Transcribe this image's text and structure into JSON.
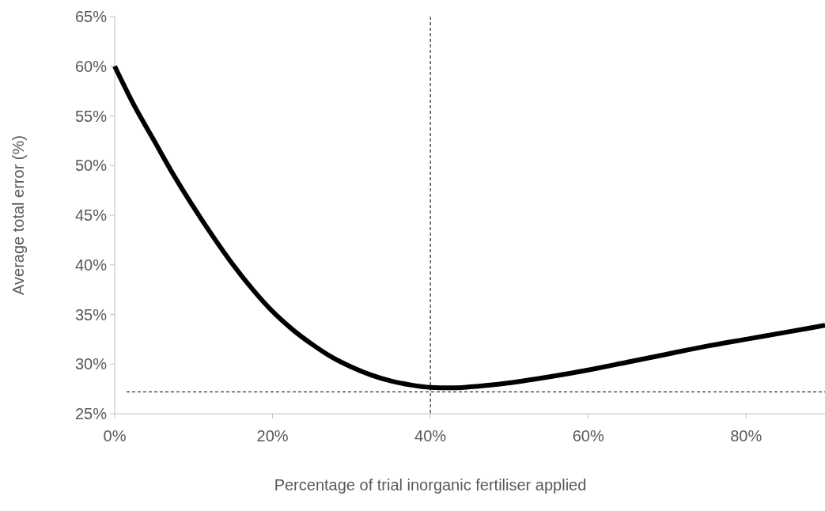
{
  "chart_data": {
    "type": "line",
    "xlabel": "Percentage of trial inorganic fertiliser applied",
    "ylabel": "Average total error (%)",
    "xlim": [
      0,
      90
    ],
    "xticks": [
      {
        "value": 0,
        "label": "0%"
      },
      {
        "value": 20,
        "label": "20%"
      },
      {
        "value": 40,
        "label": "40%"
      },
      {
        "value": 60,
        "label": "60%"
      },
      {
        "value": 80,
        "label": "80%"
      }
    ],
    "ylim": [
      25,
      65
    ],
    "yticks": [
      {
        "value": 25,
        "label": "25%"
      },
      {
        "value": 30,
        "label": "30%"
      },
      {
        "value": 35,
        "label": "35%"
      },
      {
        "value": 40,
        "label": "40%"
      },
      {
        "value": 45,
        "label": "45%"
      },
      {
        "value": 50,
        "label": "50%"
      },
      {
        "value": 55,
        "label": "55%"
      },
      {
        "value": 60,
        "label": "60%"
      },
      {
        "value": 65,
        "label": "65%"
      }
    ],
    "grid": false,
    "marker": "none",
    "line_style": "solid",
    "series": [
      {
        "color": "#000000",
        "x": [
          0,
          2.5,
          5,
          7.5,
          10,
          12.5,
          15,
          17.5,
          20,
          22.5,
          25,
          27.5,
          30,
          32.5,
          35,
          37.5,
          40,
          42.5,
          45,
          50,
          55,
          60,
          65,
          70,
          75,
          80,
          85,
          90
        ],
        "values": [
          60,
          56,
          52.5,
          49,
          45.8,
          42.8,
          40,
          37.5,
          35.3,
          33.5,
          32,
          30.7,
          29.7,
          28.9,
          28.3,
          27.9,
          27.65,
          27.6,
          27.7,
          28.1,
          28.7,
          29.4,
          30.2,
          31,
          31.8,
          32.5,
          33.2,
          33.9
        ]
      }
    ],
    "ref_lines": [
      {
        "axis": "x",
        "value": 40,
        "color": "#000000",
        "line_style": "dashed"
      },
      {
        "axis": "y",
        "value": 27.2,
        "color": "#000000",
        "line_style": "dashed"
      }
    ]
  }
}
